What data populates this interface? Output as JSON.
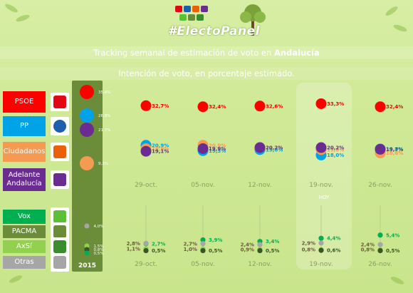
{
  "header": {
    "brand": "#ElectoPanel",
    "title_prefix": "Tracking semanal de estimación de voto en ",
    "title_region": "Andalucía",
    "subtitle": "Intención de voto, en porcentaje estimado.",
    "header_logo_names": [
      "psoe-logo-icon",
      "pp-logo-icon",
      "cs-logo-icon",
      "adelante-logo-icon",
      "vox-logo-icon",
      "pacma-logo-icon",
      "axsi-logo-icon"
    ]
  },
  "parties": [
    {
      "label": "PSOE",
      "color": "#ff0000",
      "logo_text": "PSOE",
      "logo_color": "#e30613"
    },
    {
      "label": "PP",
      "color": "#00a2e8",
      "logo_text": "PP",
      "logo_color": "#1d5fad"
    },
    {
      "label": "Ciudadanos",
      "color": "#f59a53",
      "logo_text": "Cs",
      "logo_color": "#eb6109"
    },
    {
      "label": "Adelante Andalucía",
      "color": "#6a2c91",
      "logo_text": "Adelante Andalucía",
      "logo_color": "#6a2c91"
    },
    {
      "label": "Vox",
      "color": "#00b050",
      "logo_text": "VOX",
      "logo_color": "#5bc035"
    },
    {
      "label": "PACMA",
      "color": "#6b8c39",
      "logo_text": "PACMA",
      "logo_color": "#6b8c39"
    },
    {
      "label": "AxSí",
      "color": "#92d050",
      "logo_text": "AxSí",
      "logo_color": "#3a8c2c"
    },
    {
      "label": "Otras",
      "color": "#a6a6a6",
      "logo_text": "",
      "logo_color": "#a6a6a6"
    }
  ],
  "hoy_label": "HOY",
  "chart_data": {
    "type": "scatter",
    "title": "Tracking semanal de estimación de voto en Andalucía",
    "subtitle": "Intención de voto, en porcentaje estimado.",
    "baseline_label": "2015",
    "categories": [
      "29-oct.",
      "05-nov.",
      "12-nov.",
      "19-nov.",
      "26-nov."
    ],
    "highlight_category": "19-nov.",
    "baseline": {
      "PSOE": 35.4,
      "PP": 26.8,
      "Adelante Andalucía": 21.7,
      "Ciudadanos": 9.3,
      "Otras": 4.0,
      "AxSí": 1.5,
      "PACMA": 0.8,
      "Vox": 0.5
    },
    "baseline_labels": {
      "PSOE": "35,4%",
      "PP": "26,8%",
      "Adelante Andalucía": "21,7%",
      "Ciudadanos": "9,3%",
      "Otras": "4,0%",
      "AxSí": "1,5%",
      "PACMA": "0,8%",
      "Vox": "0,5%"
    },
    "series": [
      {
        "name": "PSOE",
        "color": "#ff0000",
        "values": [
          32.7,
          32.4,
          32.6,
          33.3,
          32.4
        ],
        "labels": [
          "32,7%",
          "32,4%",
          "32,6%",
          "33,3%",
          "32,4%"
        ]
      },
      {
        "name": "PP",
        "color": "#00a2e8",
        "values": [
          20.9,
          19.3,
          19.6,
          18.0,
          19.8
        ],
        "labels": [
          "20,9%",
          "19,3%",
          "19,6%",
          "18,0%",
          "19,8%"
        ]
      },
      {
        "name": "Ciudadanos",
        "color": "#f59a53",
        "values": [
          19.9,
          20.9,
          20.2,
          19.6,
          18.6
        ],
        "labels": [
          "19,9%",
          "20,9%",
          "20,2%",
          "19,6%",
          "18,6%"
        ]
      },
      {
        "name": "Adelante Andalucía",
        "color": "#6a2c91",
        "values": [
          19.1,
          19.9,
          20.2,
          20.2,
          19.7
        ],
        "labels": [
          "19,1%",
          "19,9%",
          "20,2%",
          "20,2%",
          "19,7%"
        ]
      },
      {
        "name": "Vox",
        "color": "#00b050",
        "values": [
          2.7,
          3.9,
          3.4,
          4.4,
          5.4
        ],
        "labels": [
          "2,7%",
          "3,9%",
          "3,4%",
          "4,4%",
          "5,4%"
        ]
      },
      {
        "name": "Otras",
        "color": "#a6a6a6",
        "values": [
          2.8,
          2.7,
          2.4,
          2.9,
          2.4
        ],
        "labels": [
          "2,8%",
          "2,7%",
          "2,4%",
          "2,9%",
          "2,4%"
        ]
      },
      {
        "name": "AxSí",
        "color": "#92d050",
        "values": [
          1.1,
          1.0,
          0.9,
          0.8,
          0.8
        ],
        "labels": [
          "1,1%",
          "1,0%",
          "0,9%",
          "0,8%",
          "0,8%"
        ]
      },
      {
        "name": "PACMA",
        "color": "#375623",
        "values": [
          0.5,
          0.5,
          0.5,
          0.6,
          0.5
        ],
        "labels": [
          "0,5%",
          "0,5%",
          "0,5%",
          "0,6%",
          "0,5%"
        ]
      }
    ]
  }
}
